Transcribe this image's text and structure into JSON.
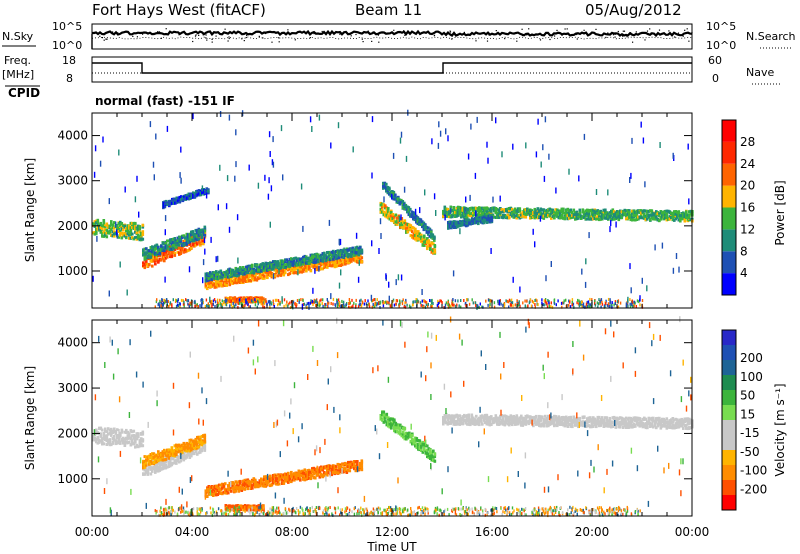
{
  "header": {
    "station": "Fort Hays West (fitACF)",
    "beam": "Beam 11",
    "date": "05/Aug/2012"
  },
  "top_panels": {
    "nsky_label": "N.Sky",
    "nsky_tick_top": "10^5",
    "nsky_tick_bottom": "10^0",
    "nsearch_label": "N.Search",
    "freq_label": "Freq.",
    "freq_unit": "[MHz]",
    "freq_tick_top": "18",
    "freq_tick_bottom": "8",
    "nave_tick_top": "60",
    "nave_tick_bottom": "0",
    "nave_label": "Nave",
    "cpid_label": "CPID",
    "cpid_text": "normal (fast) -151 IF"
  },
  "colors": {
    "power": [
      "#0000ff",
      "#1e50b4",
      "#1e8c78",
      "#3cb43c",
      "#ffb400",
      "#ff6400",
      "#ff2800",
      "#ff0000"
    ],
    "velocity": [
      "#ff0000",
      "#ff5000",
      "#ff8c00",
      "#ffb400",
      "#c8c8c8",
      "#c8c8c8",
      "#78dc50",
      "#3cb43c",
      "#1e8c50",
      "#1e6496",
      "#1e50b4",
      "#2828c8"
    ]
  },
  "chart_data": [
    {
      "type": "heatmap",
      "quantity": "power",
      "ylabel": "Slant Range [km]",
      "xlabel": "Time UT",
      "x_ticks": [
        "00:00",
        "04:00",
        "08:00",
        "12:00",
        "16:00",
        "20:00",
        "00:00"
      ],
      "y_ticks": [
        1000,
        2000,
        3000,
        4000
      ],
      "xlim_hours": [
        0,
        24
      ],
      "ylim_km": [
        180,
        4500
      ],
      "colorbar": {
        "label": "Power [dB]",
        "ticks": [
          4,
          8,
          12,
          16,
          20,
          24,
          28
        ],
        "range": [
          0,
          32
        ]
      },
      "bands": [
        {
          "t": [
            0.0,
            2.0
          ],
          "r": [
            1950,
            1850
          ],
          "w": 180,
          "p": 14
        },
        {
          "t": [
            2.0,
            4.5
          ],
          "r": [
            1150,
            1750
          ],
          "w": 140,
          "p": 23
        },
        {
          "t": [
            2.0,
            4.5
          ],
          "r": [
            1350,
            1850
          ],
          "w": 120,
          "p": 10
        },
        {
          "t": [
            2.8,
            4.6
          ],
          "r": [
            2450,
            2780
          ],
          "w": 60,
          "p": 6
        },
        {
          "t": [
            4.5,
            10.8
          ],
          "r": [
            700,
            1300
          ],
          "w": 110,
          "p": 20
        },
        {
          "t": [
            4.5,
            10.8
          ],
          "r": [
            850,
            1450
          ],
          "w": 90,
          "p": 10
        },
        {
          "t": [
            5.3,
            6.8
          ],
          "r": [
            350,
            350
          ],
          "w": 50,
          "p": 22
        },
        {
          "t": [
            11.5,
            13.7
          ],
          "r": [
            2400,
            1450
          ],
          "w": 120,
          "p": 17
        },
        {
          "t": [
            11.6,
            13.7
          ],
          "r": [
            2900,
            1700
          ],
          "w": 80,
          "p": 9
        },
        {
          "t": [
            14.0,
            24.0
          ],
          "r": [
            2300,
            2200
          ],
          "w": 110,
          "p": 13
        },
        {
          "t": [
            14.2,
            16.0
          ],
          "r": [
            2000,
            2150
          ],
          "w": 70,
          "p": 8
        }
      ]
    },
    {
      "type": "heatmap",
      "quantity": "velocity",
      "ylabel": "Slant Range [km]",
      "xlabel": "Time UT",
      "x_ticks": [
        "00:00",
        "04:00",
        "08:00",
        "12:00",
        "16:00",
        "20:00",
        "00:00"
      ],
      "y_ticks": [
        1000,
        2000,
        3000,
        4000
      ],
      "xlim_hours": [
        0,
        24
      ],
      "ylim_km": [
        180,
        4500
      ],
      "colorbar": {
        "label": "Velocity [m s⁻¹]",
        "ticks": [
          200,
          100,
          50,
          15,
          -15,
          -50,
          -100,
          -200
        ]
      },
      "bands": [
        {
          "t": [
            0.0,
            2.0
          ],
          "r": [
            1950,
            1850
          ],
          "w": 180,
          "v": 0
        },
        {
          "t": [
            2.0,
            4.5
          ],
          "r": [
            1150,
            1750
          ],
          "w": 140,
          "v": -5
        },
        {
          "t": [
            2.0,
            4.5
          ],
          "r": [
            1350,
            1850
          ],
          "w": 120,
          "v": -40
        },
        {
          "t": [
            4.5,
            10.8
          ],
          "r": [
            700,
            1300
          ],
          "w": 110,
          "v": -70
        },
        {
          "t": [
            5.3,
            6.8
          ],
          "r": [
            350,
            350
          ],
          "w": 50,
          "v": -80
        },
        {
          "t": [
            11.5,
            13.7
          ],
          "r": [
            2400,
            1450
          ],
          "w": 120,
          "v": 40
        },
        {
          "t": [
            14.0,
            24.0
          ],
          "r": [
            2300,
            2200
          ],
          "w": 110,
          "v": 0
        }
      ]
    }
  ]
}
